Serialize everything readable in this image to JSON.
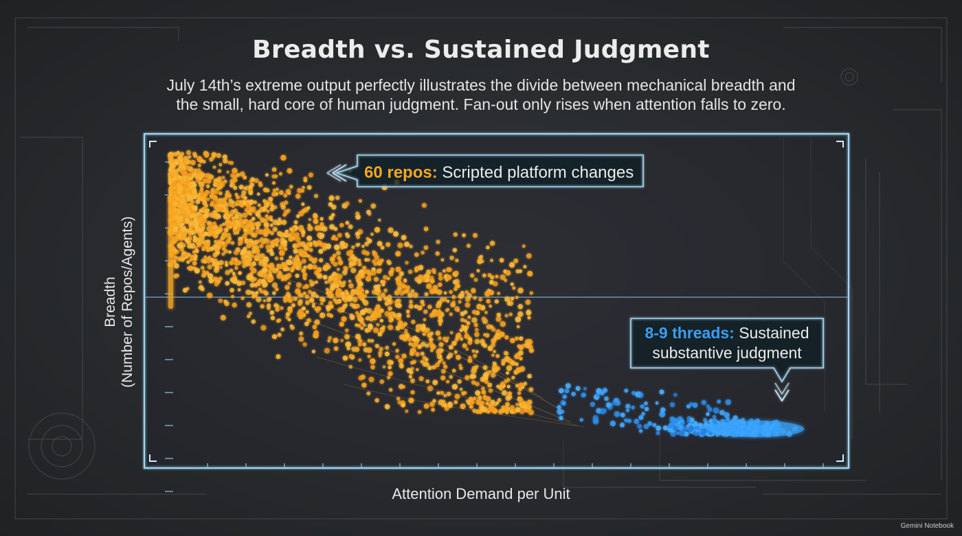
{
  "chart_data": {
    "type": "scatter",
    "title": "Breadth vs. Sustained Judgment",
    "subtitle_lines": [
      "July 14th’s extreme output perfectly illustrates the divide between mechanical breadth and",
      "the small, hard core of human judgment. Fan-out only rises when attention falls to zero."
    ],
    "xlabel": "Attention Demand per Unit",
    "ylabel_lines": [
      "Breadth",
      "(Number of Repos/Agents)"
    ],
    "xlim": [
      0,
      100
    ],
    "ylim": [
      0,
      100
    ],
    "grid": false,
    "legend": "none",
    "series": [
      {
        "color": "#f6a623",
        "points_estimate": 2200,
        "x_range": [
          0,
          55
        ],
        "y_range": [
          15,
          100
        ],
        "trend": "decreasing"
      },
      {
        "color": "#2f8fe8",
        "points_estimate": 400,
        "x_range": [
          59,
          96
        ],
        "y_range": [
          10,
          26
        ],
        "trend": "flat"
      }
    ],
    "annotations": [
      {
        "highlight": "60 repos:",
        "text": " Scripted platform changes",
        "color": "#f6a623"
      },
      {
        "highlight": "8-9 threads:",
        "text": " Sustained",
        "line2": "substantive judgment",
        "color": "#2f8fe8"
      }
    ]
  },
  "watermark": "Gemini Notebook"
}
